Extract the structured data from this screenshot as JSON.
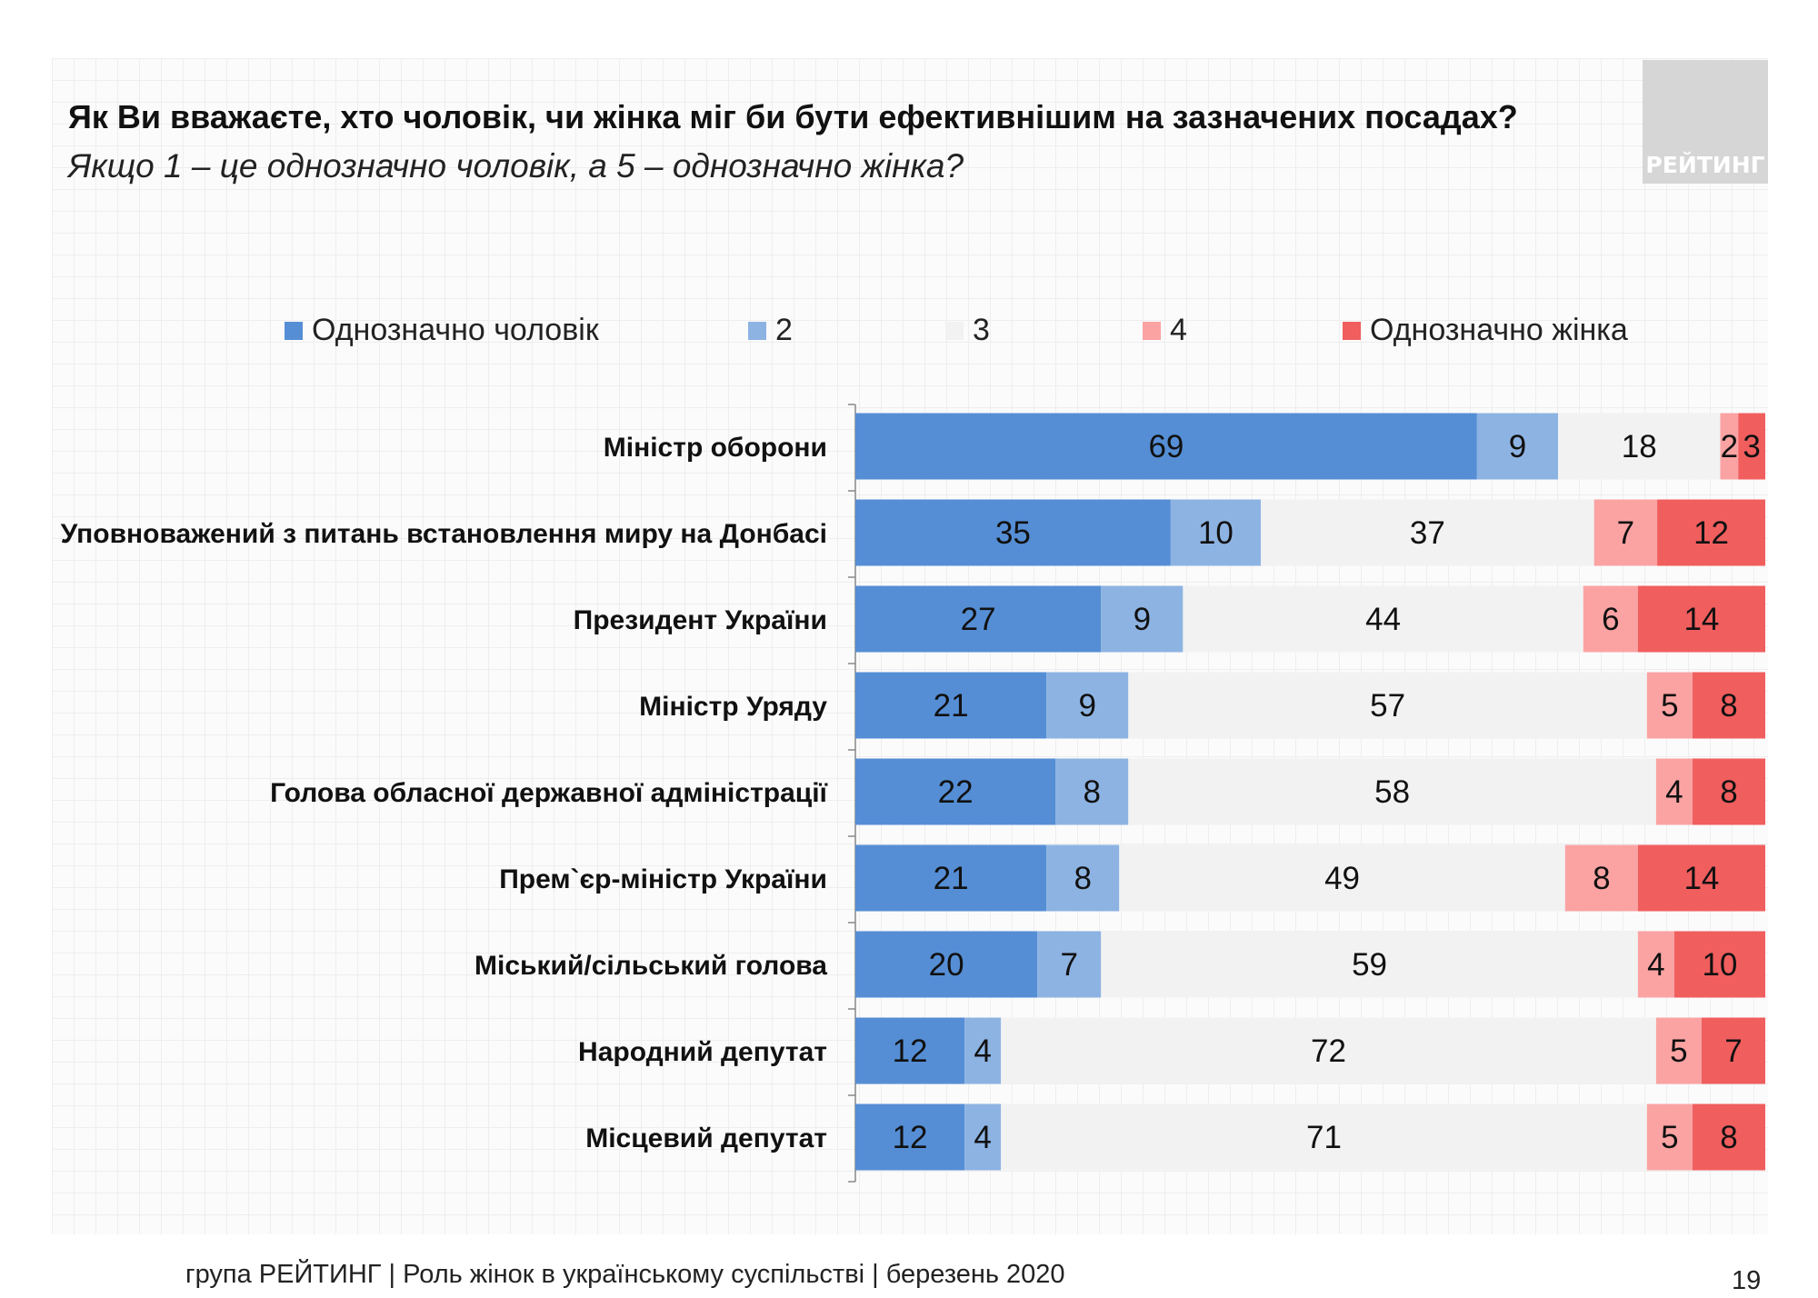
{
  "title": "Як Ви вважаєте, хто чоловік, чи жінка міг би бути ефективнішим на зазначених посадах?",
  "subtitle": "Якщо 1 – це однозначно чоловік, а 5 – однозначно жінка?",
  "logo_text": "РЕЙТИНГ",
  "footer": "група РЕЙТИНГ | Роль жінок в українському суспільстві | березень 2020",
  "page_number": "19",
  "chart_data": {
    "type": "bar",
    "orientation": "horizontal-stacked",
    "categories": [
      "Міністр оборони",
      "Уповноважений з питань встановлення миру на Донбасі",
      "Президент України",
      "Міністр Уряду",
      "Голова обласної державної адміністрації",
      "Прем`єр-міністр України",
      "Міський/сільський голова",
      "Народний депутат",
      "Місцевий депутат"
    ],
    "series": [
      {
        "name": "Однозначно чоловік",
        "color": "#558ed5",
        "values": [
          69,
          35,
          27,
          21,
          22,
          21,
          20,
          12,
          12
        ]
      },
      {
        "name": "2",
        "color": "#8db3e2",
        "values": [
          9,
          10,
          9,
          9,
          8,
          8,
          7,
          4,
          4
        ]
      },
      {
        "name": "3",
        "color": "#f2f2f2",
        "values": [
          18,
          37,
          44,
          57,
          58,
          49,
          59,
          72,
          71
        ]
      },
      {
        "name": "4",
        "color": "#fba3a3",
        "values": [
          2,
          7,
          6,
          5,
          4,
          8,
          4,
          5,
          5
        ]
      },
      {
        "name": "Однозначно жінка",
        "color": "#f15e5e",
        "values": [
          3,
          12,
          14,
          8,
          8,
          14,
          10,
          7,
          8
        ]
      }
    ],
    "legend": "top",
    "data_labels": true,
    "unit": "%"
  }
}
